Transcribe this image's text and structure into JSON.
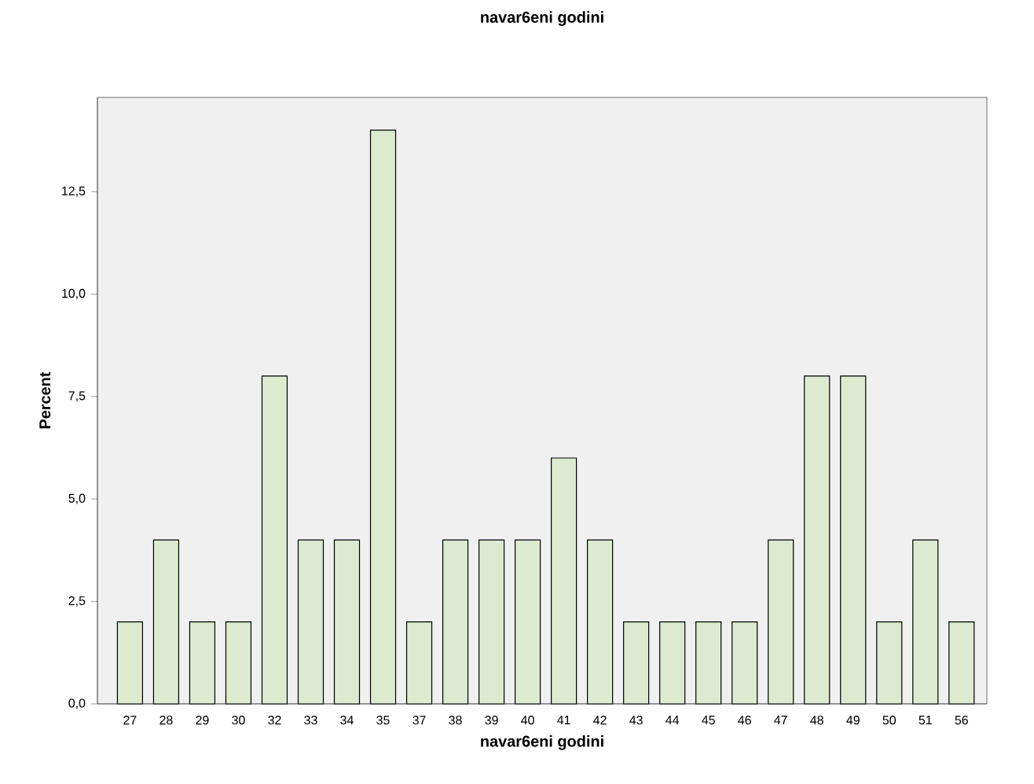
{
  "chart_data": {
    "type": "bar",
    "title": "navar6eni godini",
    "xlabel": "navar6eni godini",
    "ylabel": "Percent",
    "categories": [
      "27",
      "28",
      "29",
      "30",
      "32",
      "33",
      "34",
      "35",
      "37",
      "38",
      "39",
      "40",
      "41",
      "42",
      "43",
      "44",
      "45",
      "46",
      "47",
      "48",
      "49",
      "50",
      "51",
      "56"
    ],
    "values": [
      2,
      4,
      2,
      2,
      8,
      4,
      4,
      14,
      2,
      4,
      4,
      4,
      6,
      4,
      2,
      2,
      2,
      2,
      4,
      8,
      8,
      2,
      4,
      2
    ],
    "color": "#dcebd0",
    "ylim": [
      0,
      14.8
    ],
    "yticks": [
      {
        "value": 0,
        "label": "0,0"
      },
      {
        "value": 2.5,
        "label": "2,5"
      },
      {
        "value": 5,
        "label": "5,0"
      },
      {
        "value": 7.5,
        "label": "7,5"
      },
      {
        "value": 10,
        "label": "10,0"
      },
      {
        "value": 12.5,
        "label": "12,5"
      }
    ],
    "grid": false
  }
}
